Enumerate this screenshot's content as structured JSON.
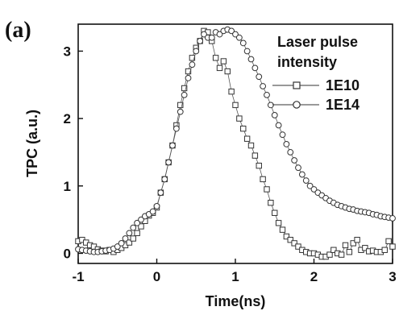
{
  "panel_label": "(a)",
  "chart_data": {
    "type": "scatter",
    "title": "",
    "xlabel": "Time(ns)",
    "ylabel": "TPC (a.u.)",
    "xlim": [
      -1,
      3
    ],
    "ylim": [
      -0.15,
      3.4
    ],
    "xticks": [
      -1,
      0,
      1,
      2,
      3
    ],
    "yticks": [
      0,
      1,
      2,
      3
    ],
    "legend": {
      "title_lines": [
        "Laser pulse",
        "intensity"
      ],
      "placement": "top-right"
    },
    "series": [
      {
        "name": "1E10",
        "marker": "square",
        "x": [
          -1.0,
          -0.95,
          -0.9,
          -0.85,
          -0.8,
          -0.75,
          -0.7,
          -0.65,
          -0.6,
          -0.55,
          -0.5,
          -0.45,
          -0.4,
          -0.35,
          -0.3,
          -0.25,
          -0.2,
          -0.15,
          -0.1,
          -0.05,
          0.0,
          0.05,
          0.1,
          0.15,
          0.2,
          0.25,
          0.3,
          0.35,
          0.4,
          0.45,
          0.5,
          0.55,
          0.6,
          0.65,
          0.7,
          0.75,
          0.8,
          0.85,
          0.9,
          0.95,
          1.0,
          1.05,
          1.1,
          1.15,
          1.2,
          1.25,
          1.3,
          1.35,
          1.4,
          1.45,
          1.5,
          1.55,
          1.6,
          1.65,
          1.7,
          1.75,
          1.8,
          1.85,
          1.9,
          1.95,
          2.0,
          2.05,
          2.1,
          2.15,
          2.2,
          2.25,
          2.3,
          2.35,
          2.4,
          2.45,
          2.5,
          2.55,
          2.6,
          2.65,
          2.7,
          2.75,
          2.8,
          2.85,
          2.9,
          2.95,
          3.0
        ],
        "y": [
          0.18,
          0.2,
          0.16,
          0.12,
          0.1,
          0.06,
          0.04,
          0.03,
          0.05,
          0.02,
          0.05,
          0.08,
          0.12,
          0.16,
          0.22,
          0.3,
          0.4,
          0.48,
          0.56,
          0.6,
          0.68,
          0.9,
          1.1,
          1.35,
          1.6,
          1.9,
          2.2,
          2.45,
          2.7,
          2.9,
          3.05,
          3.15,
          3.3,
          3.28,
          3.15,
          2.9,
          2.75,
          2.85,
          2.7,
          2.4,
          2.2,
          2.0,
          1.85,
          1.7,
          1.6,
          1.45,
          1.3,
          1.1,
          0.95,
          0.75,
          0.6,
          0.45,
          0.35,
          0.25,
          0.2,
          0.15,
          0.1,
          0.05,
          0.02,
          0.0,
          0.0,
          -0.02,
          -0.05,
          -0.05,
          -0.02,
          0.05,
          0.0,
          -0.02,
          0.12,
          0.02,
          0.15,
          0.2,
          0.05,
          0.08,
          0.03,
          0.04,
          0.02,
          0.02,
          0.05,
          0.18,
          0.1
        ]
      },
      {
        "name": "1E14",
        "marker": "circle",
        "x": [
          -1.0,
          -0.95,
          -0.9,
          -0.85,
          -0.8,
          -0.75,
          -0.7,
          -0.65,
          -0.6,
          -0.55,
          -0.5,
          -0.45,
          -0.4,
          -0.35,
          -0.3,
          -0.25,
          -0.2,
          -0.15,
          -0.1,
          -0.05,
          0.0,
          0.05,
          0.1,
          0.15,
          0.2,
          0.25,
          0.3,
          0.35,
          0.4,
          0.45,
          0.5,
          0.55,
          0.6,
          0.65,
          0.7,
          0.75,
          0.8,
          0.85,
          0.9,
          0.95,
          1.0,
          1.05,
          1.1,
          1.15,
          1.2,
          1.25,
          1.3,
          1.35,
          1.4,
          1.45,
          1.5,
          1.55,
          1.6,
          1.65,
          1.7,
          1.75,
          1.8,
          1.85,
          1.9,
          1.95,
          2.0,
          2.05,
          2.1,
          2.15,
          2.2,
          2.25,
          2.3,
          2.35,
          2.4,
          2.45,
          2.5,
          2.55,
          2.6,
          2.65,
          2.7,
          2.75,
          2.8,
          2.85,
          2.9,
          2.95,
          3.0
        ],
        "y": [
          0.06,
          0.05,
          0.04,
          0.03,
          0.02,
          0.02,
          0.03,
          0.04,
          0.05,
          0.07,
          0.1,
          0.15,
          0.22,
          0.3,
          0.38,
          0.45,
          0.5,
          0.55,
          0.58,
          0.62,
          0.7,
          0.9,
          1.1,
          1.35,
          1.6,
          1.85,
          2.1,
          2.35,
          2.6,
          2.8,
          3.0,
          3.15,
          3.25,
          3.2,
          3.2,
          3.28,
          3.25,
          3.3,
          3.32,
          3.3,
          3.25,
          3.2,
          3.12,
          3.0,
          2.88,
          2.75,
          2.62,
          2.48,
          2.35,
          2.2,
          2.05,
          1.9,
          1.76,
          1.62,
          1.5,
          1.38,
          1.27,
          1.17,
          1.08,
          1.0,
          0.95,
          0.9,
          0.86,
          0.82,
          0.78,
          0.75,
          0.72,
          0.7,
          0.68,
          0.66,
          0.65,
          0.63,
          0.62,
          0.61,
          0.6,
          0.58,
          0.57,
          0.55,
          0.54,
          0.53,
          0.52
        ]
      }
    ]
  }
}
